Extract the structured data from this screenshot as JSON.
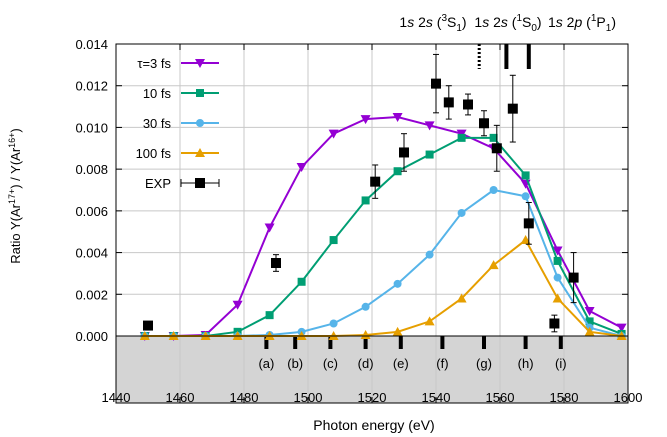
{
  "chart_data": {
    "type": "line",
    "xlabel": "Photon energy (eV)",
    "ylabel_parts": [
      "Ratio Y(Ar",
      "17+",
      ") / Y(Ar",
      "16+",
      ")"
    ],
    "xlim": [
      1440,
      1600
    ],
    "ylim": [
      0,
      0.014
    ],
    "x_ticks": [
      1440,
      1460,
      1480,
      1500,
      1520,
      1540,
      1560,
      1580,
      1600
    ],
    "y_ticks": [
      0.0,
      0.002,
      0.004,
      0.006,
      0.008,
      0.01,
      0.012,
      0.014
    ],
    "x_tick_labels": [
      "1440",
      "1460",
      "1480",
      "1500",
      "1520",
      "1540",
      "1560",
      "1580",
      "1600"
    ],
    "y_tick_labels": [
      "0.000",
      "0.002",
      "0.004",
      "0.006",
      "0.008",
      "0.010",
      "0.012",
      "0.014"
    ],
    "grid": true,
    "legend_position": "top-left",
    "series": [
      {
        "name": "τ=3 fs",
        "color": "#9400d3",
        "marker": "triangle-down",
        "x": [
          1449,
          1458,
          1468,
          1478,
          1488,
          1498,
          1508,
          1518,
          1528,
          1538,
          1548,
          1558,
          1568,
          1578,
          1588,
          1598
        ],
        "y": [
          0.0,
          0.0,
          5e-05,
          0.0015,
          0.0052,
          0.0081,
          0.0097,
          0.0104,
          0.0105,
          0.0101,
          0.0097,
          0.009,
          0.0073,
          0.0041,
          0.0012,
          0.0004
        ]
      },
      {
        "name": "10 fs",
        "color": "#009e73",
        "marker": "square",
        "x": [
          1449,
          1458,
          1468,
          1478,
          1488,
          1498,
          1508,
          1518,
          1528,
          1538,
          1548,
          1558,
          1568,
          1578,
          1588,
          1598
        ],
        "y": [
          0.0,
          0.0,
          0.0,
          0.0002,
          0.001,
          0.0026,
          0.0046,
          0.0065,
          0.0079,
          0.0087,
          0.0095,
          0.0095,
          0.0077,
          0.0036,
          0.0007,
          0.0001
        ]
      },
      {
        "name": "30 fs",
        "color": "#56b4e9",
        "marker": "circle",
        "x": [
          1449,
          1458,
          1468,
          1478,
          1488,
          1498,
          1508,
          1518,
          1528,
          1538,
          1548,
          1558,
          1568,
          1578,
          1588,
          1598
        ],
        "y": [
          0.0,
          0.0,
          0.0,
          0.0,
          5e-05,
          0.0002,
          0.0006,
          0.0014,
          0.0025,
          0.0039,
          0.0059,
          0.007,
          0.0067,
          0.0028,
          0.0004,
          0.0
        ],
        "note": null
      },
      {
        "name": "100 fs",
        "color": "#e69f00",
        "marker": "triangle-up",
        "x": [
          1449,
          1458,
          1468,
          1478,
          1488,
          1498,
          1508,
          1518,
          1528,
          1538,
          1548,
          1558,
          1568,
          1578,
          1588,
          1598
        ],
        "y": [
          0.0,
          0.0,
          0.0,
          0.0,
          0.0,
          0.0,
          0.0,
          5e-05,
          0.0002,
          0.0007,
          0.0018,
          0.0034,
          0.0046,
          0.0018,
          0.0002,
          0.0
        ]
      }
    ],
    "experiment": {
      "name": "EXP",
      "color": "#000000",
      "marker": "square",
      "points": [
        {
          "x": 1450,
          "y": 0.0005,
          "yerr": 0.0
        },
        {
          "x": 1490,
          "y": 0.0035,
          "yerr": 0.0004
        },
        {
          "x": 1521,
          "y": 0.0074,
          "yerr": 0.0008
        },
        {
          "x": 1530,
          "y": 0.0088,
          "yerr": 0.0009
        },
        {
          "x": 1540,
          "y": 0.0121,
          "yerr": 0.0014
        },
        {
          "x": 1544,
          "y": 0.0112,
          "yerr": 0.0008
        },
        {
          "x": 1550,
          "y": 0.0111,
          "yerr": 0.0005
        },
        {
          "x": 1555,
          "y": 0.0102,
          "yerr": 0.0006
        },
        {
          "x": 1559,
          "y": 0.009,
          "yerr": 0.0011
        },
        {
          "x": 1564,
          "y": 0.0109,
          "yerr": 0.0016
        },
        {
          "x": 1569,
          "y": 0.0054,
          "yerr": 0.001
        },
        {
          "x": 1577,
          "y": 0.0006,
          "yerr": 0.0004
        },
        {
          "x": 1583,
          "y": 0.0028,
          "yerr": 0.0012
        }
      ]
    },
    "pulse_markers": [
      {
        "label": "(a)",
        "x": 1487
      },
      {
        "label": "(b)",
        "x": 1496
      },
      {
        "label": "(c)",
        "x": 1507
      },
      {
        "label": "(d)",
        "x": 1518
      },
      {
        "label": "(e)",
        "x": 1529
      },
      {
        "label": "(f)",
        "x": 1542
      },
      {
        "label": "(g)",
        "x": 1555
      },
      {
        "label": "(h)",
        "x": 1568
      },
      {
        "label": "(i)",
        "x": 1579
      }
    ],
    "resonances": [
      {
        "x": 1553.5,
        "style": "dotted",
        "label_parts": [
          "1",
          "s",
          " 2",
          "s",
          " (",
          "3",
          "S",
          "1",
          ")"
        ]
      },
      {
        "x": 1562,
        "style": "solid",
        "label_parts": [
          "1",
          "s",
          " 2",
          "s",
          " (",
          "1",
          "S",
          "0",
          ")"
        ]
      },
      {
        "x": 1569,
        "style": "solid",
        "label_parts": [
          "1",
          "s",
          " 2",
          "p",
          " (",
          "1",
          "P",
          "1",
          ")"
        ]
      }
    ]
  }
}
